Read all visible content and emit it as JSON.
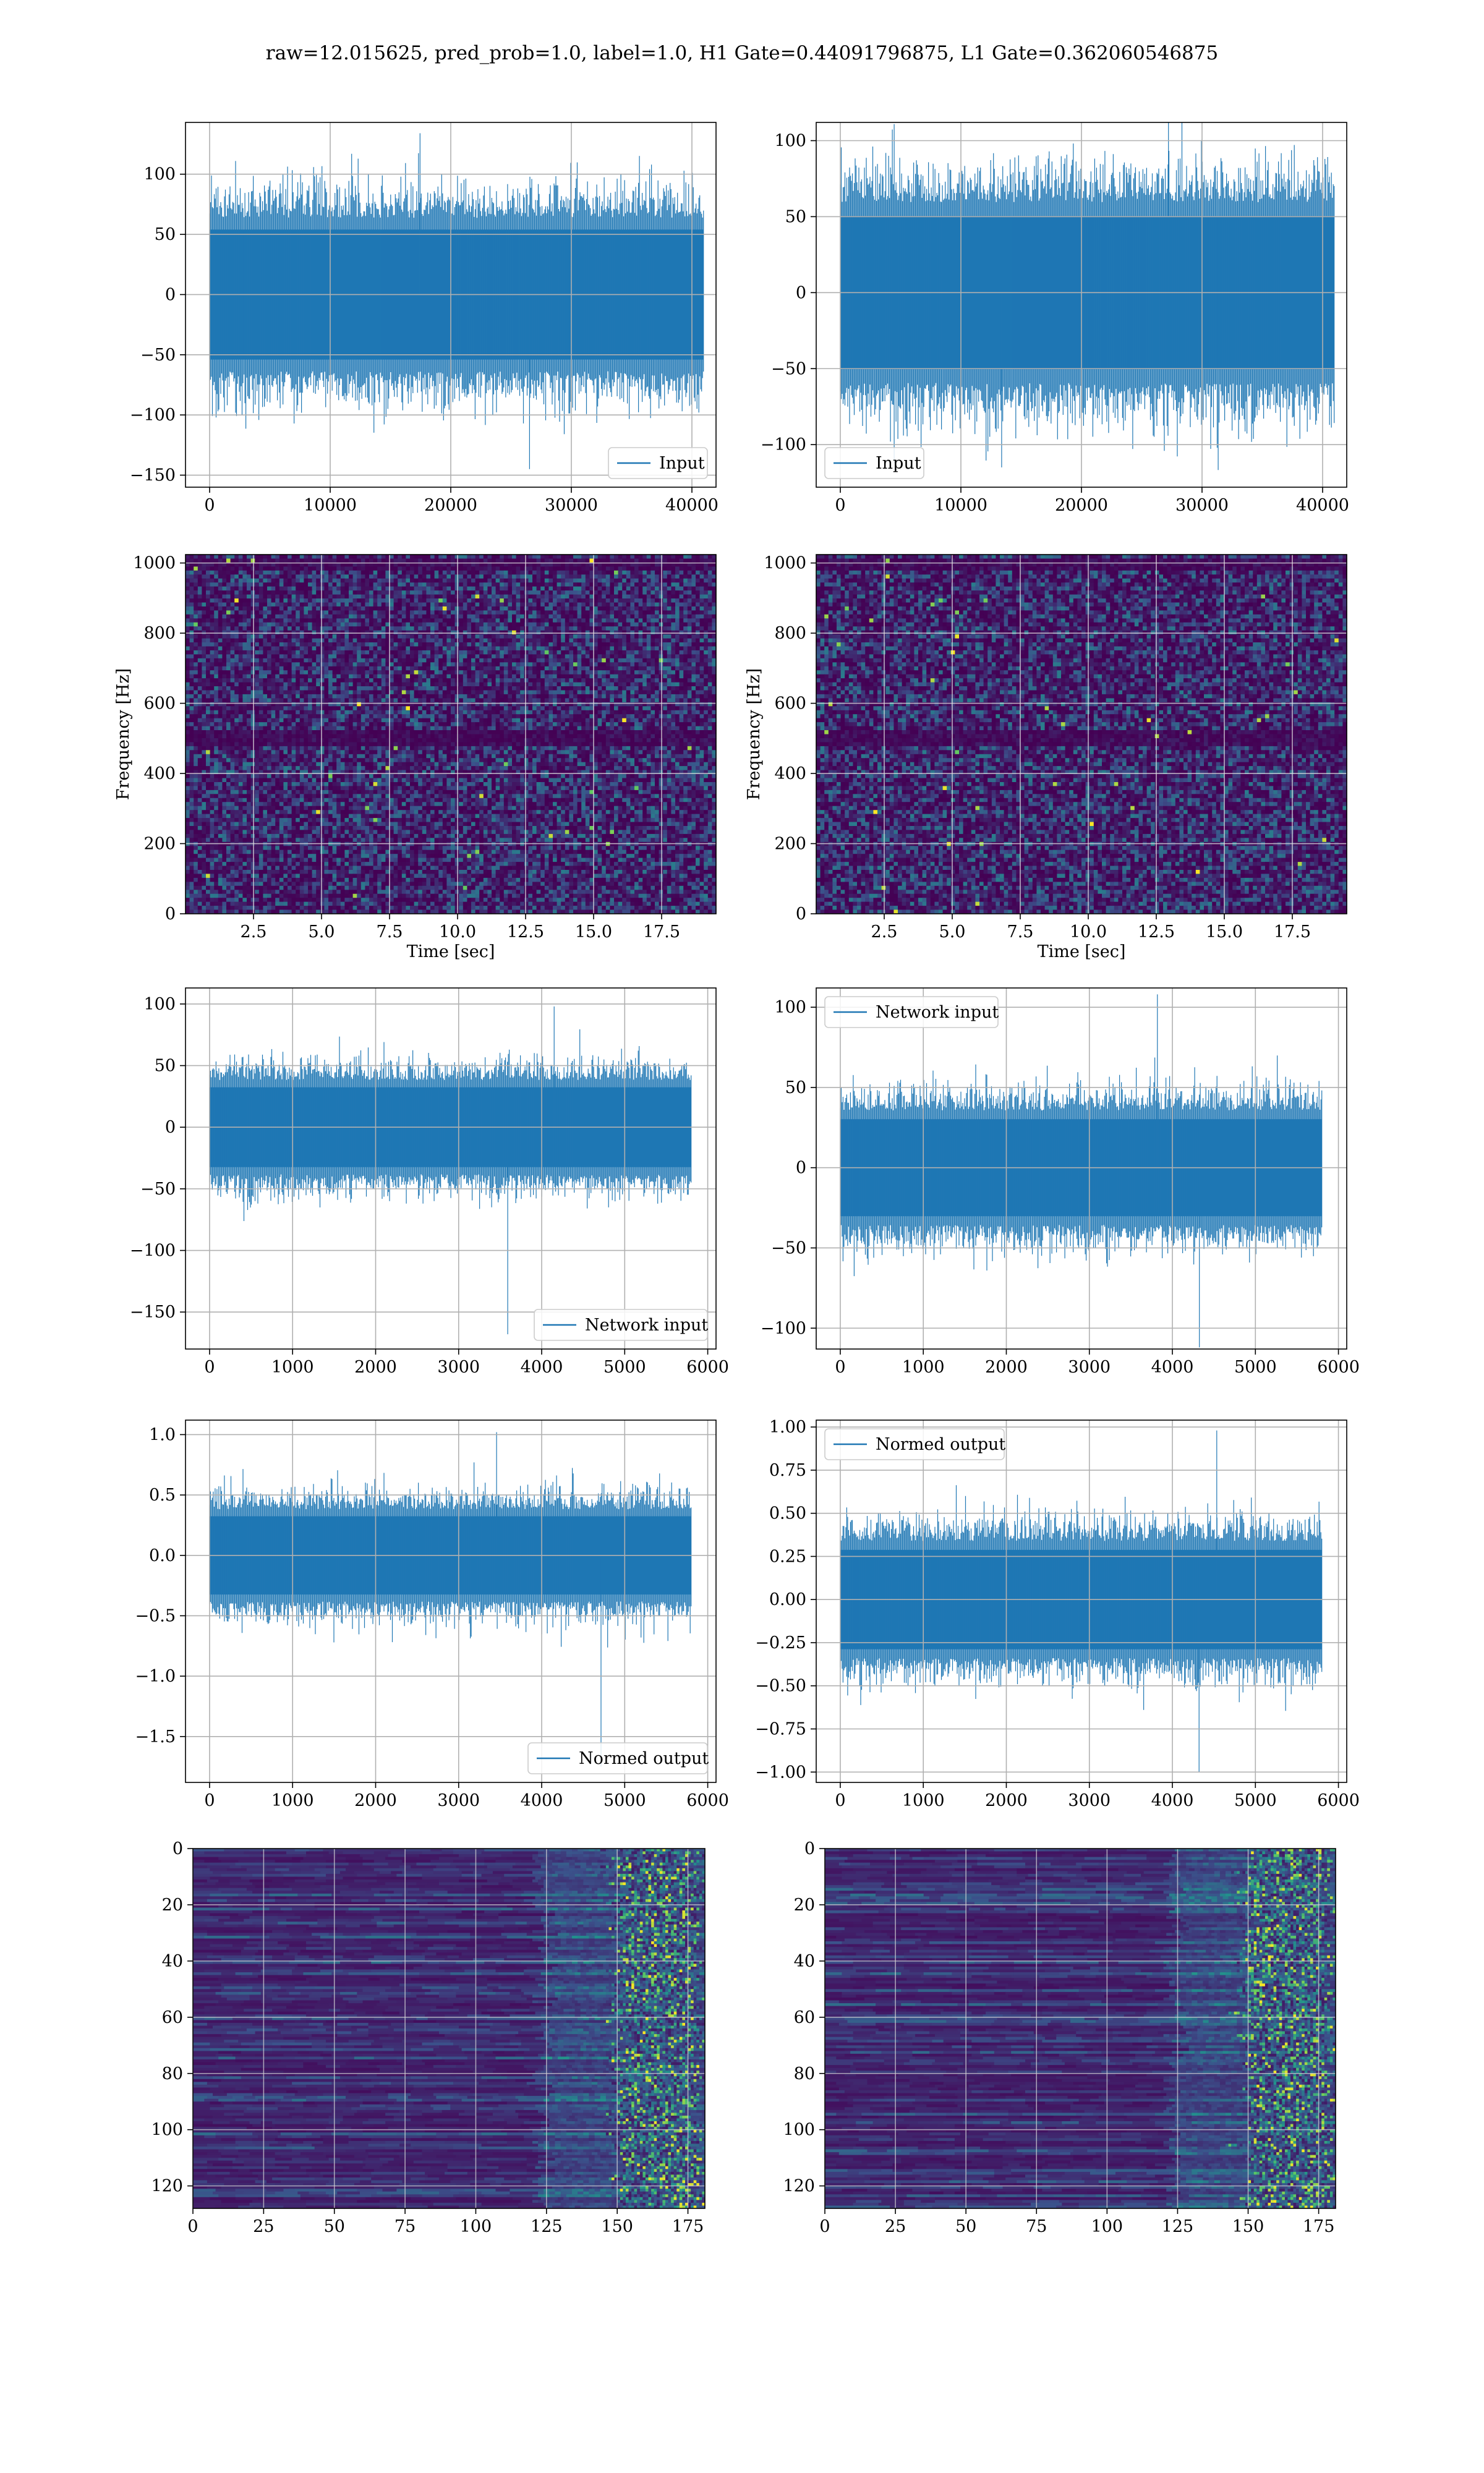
{
  "suptitle": "raw=12.015625, pred_prob=1.0, label=1.0, H1 Gate=0.44091796875, L1 Gate=0.362060546875",
  "colors": {
    "series": "#1f77b4",
    "grid": "#b0b0b0",
    "viridis_dark": "#440154",
    "viridis_bright": "#fde725"
  },
  "chart_data": [
    {
      "id": "p00",
      "type": "line",
      "series": [
        {
          "name": "Input",
          "amplitude_typical": 75,
          "y_min_observed": -145,
          "y_max_observed": 134
        }
      ],
      "xlim": [
        -2000,
        42000
      ],
      "ylim": [
        -160,
        143
      ],
      "xticks": [
        0,
        10000,
        20000,
        30000,
        40000
      ],
      "yticks": [
        -150,
        -100,
        -50,
        0,
        50,
        100
      ],
      "x_range_data": [
        0,
        40960
      ],
      "legend": "lower-right",
      "grid": true,
      "xlabel": "",
      "ylabel": ""
    },
    {
      "id": "p01",
      "type": "line",
      "series": [
        {
          "name": "Input",
          "amplitude_typical": 70,
          "y_min_observed": -115,
          "y_max_observed": 117
        }
      ],
      "xlim": [
        -2000,
        42000
      ],
      "ylim": [
        -128,
        112
      ],
      "xticks": [
        0,
        10000,
        20000,
        30000,
        40000
      ],
      "yticks": [
        -100,
        -50,
        0,
        50,
        100
      ],
      "x_range_data": [
        0,
        40960
      ],
      "legend": "lower-left",
      "grid": true,
      "xlabel": "",
      "ylabel": ""
    },
    {
      "id": "p10",
      "type": "heatmap",
      "subtype": "spectrogram",
      "xlim": [
        0,
        19.5
      ],
      "ylim": [
        0,
        1024
      ],
      "xticks": [
        2.5,
        5.0,
        7.5,
        10.0,
        12.5,
        15.0,
        17.5
      ],
      "yticks": [
        0,
        200,
        400,
        600,
        800,
        1000
      ],
      "xlabel": "Time [sec]",
      "ylabel": "Frequency [Hz]",
      "grid": true,
      "dark_bands_hz": [
        500,
        1000
      ]
    },
    {
      "id": "p11",
      "type": "heatmap",
      "subtype": "spectrogram",
      "xlim": [
        0,
        19.5
      ],
      "ylim": [
        0,
        1024
      ],
      "xticks": [
        2.5,
        5.0,
        7.5,
        10.0,
        12.5,
        15.0,
        17.5
      ],
      "yticks": [
        0,
        200,
        400,
        600,
        800,
        1000
      ],
      "xlabel": "Time [sec]",
      "ylabel": "Frequency [Hz]",
      "grid": true,
      "dark_bands_hz": [
        500,
        1000
      ]
    },
    {
      "id": "p20",
      "type": "line",
      "series": [
        {
          "name": "Network input",
          "amplitude_typical": 45,
          "y_min_observed": -168,
          "y_max_observed": 98
        }
      ],
      "xlim": [
        -290,
        6100
      ],
      "ylim": [
        -180,
        113
      ],
      "xticks": [
        0,
        1000,
        2000,
        3000,
        4000,
        5000,
        6000
      ],
      "yticks": [
        -150,
        -100,
        -50,
        0,
        50,
        100
      ],
      "x_range_data": [
        0,
        5800
      ],
      "legend": "lower-right",
      "grid": true,
      "xlabel": "",
      "ylabel": ""
    },
    {
      "id": "p21",
      "type": "line",
      "series": [
        {
          "name": "Network input",
          "amplitude_typical": 42,
          "y_min_observed": -112,
          "y_max_observed": 108
        }
      ],
      "xlim": [
        -290,
        6100
      ],
      "ylim": [
        -113,
        112
      ],
      "xticks": [
        0,
        1000,
        2000,
        3000,
        4000,
        5000,
        6000
      ],
      "yticks": [
        -100,
        -50,
        0,
        50,
        100
      ],
      "x_range_data": [
        0,
        5800
      ],
      "legend": "upper-left",
      "grid": true,
      "xlabel": "",
      "ylabel": ""
    },
    {
      "id": "p30",
      "type": "line",
      "series": [
        {
          "name": "Normed output",
          "amplitude_typical": 0.45,
          "y_min_observed": -1.75,
          "y_max_observed": 1.02
        }
      ],
      "xlim": [
        -290,
        6100
      ],
      "ylim": [
        -1.88,
        1.12
      ],
      "xticks": [
        0,
        1000,
        2000,
        3000,
        4000,
        5000,
        6000
      ],
      "yticks": [
        -1.5,
        -1.0,
        -0.5,
        0.0,
        0.5,
        1.0
      ],
      "x_range_data": [
        0,
        5800
      ],
      "legend": "lower-right",
      "grid": true,
      "xlabel": "",
      "ylabel": ""
    },
    {
      "id": "p31",
      "type": "line",
      "series": [
        {
          "name": "Normed output",
          "amplitude_typical": 0.4,
          "y_min_observed": -1.0,
          "y_max_observed": 0.98
        }
      ],
      "xlim": [
        -290,
        6100
      ],
      "ylim": [
        -1.06,
        1.04
      ],
      "xticks": [
        0,
        1000,
        2000,
        3000,
        4000,
        5000,
        6000
      ],
      "yticks": [
        -1.0,
        -0.75,
        -0.5,
        -0.25,
        0.0,
        0.25,
        0.5,
        0.75,
        1.0
      ],
      "x_range_data": [
        0,
        5800
      ],
      "legend": "upper-left",
      "grid": true,
      "xlabel": "",
      "ylabel": ""
    },
    {
      "id": "p40",
      "type": "heatmap",
      "subtype": "feature-map",
      "xlim": [
        0,
        181
      ],
      "ylim": [
        128,
        0
      ],
      "xticks": [
        0,
        25,
        50,
        75,
        100,
        125,
        150,
        175
      ],
      "yticks": [
        0,
        20,
        40,
        60,
        80,
        100,
        120
      ],
      "grid": true,
      "xlabel": "",
      "ylabel": "",
      "hot_columns": [
        150,
        178
      ]
    },
    {
      "id": "p41",
      "type": "heatmap",
      "subtype": "feature-map",
      "xlim": [
        0,
        181
      ],
      "ylim": [
        128,
        0
      ],
      "xticks": [
        0,
        25,
        50,
        75,
        100,
        125,
        150,
        175
      ],
      "yticks": [
        0,
        20,
        40,
        60,
        80,
        100,
        120
      ],
      "grid": true,
      "xlabel": "",
      "ylabel": "",
      "hot_columns": [
        150,
        178
      ]
    }
  ]
}
